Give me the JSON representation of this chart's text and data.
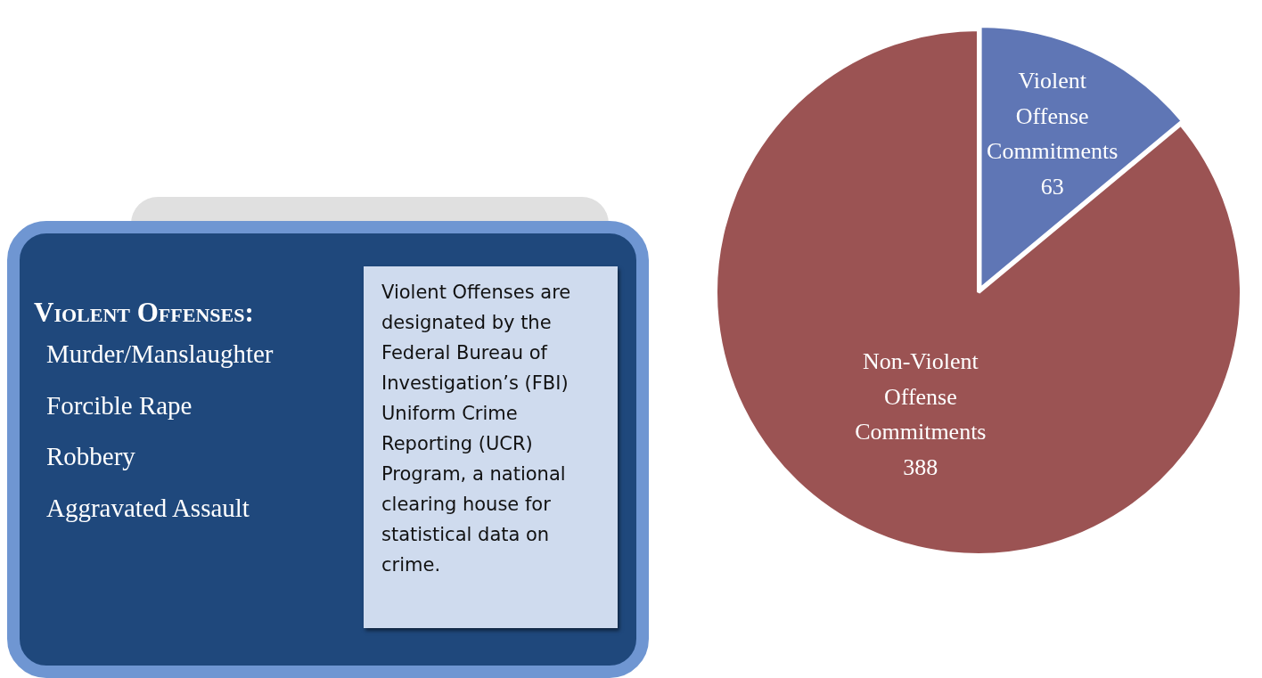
{
  "chart_data": [
    {
      "type": "other",
      "title": "Violent Offenses:",
      "annotations": [
        "Murder/Manslaughter",
        "Forcible Rape",
        "Robbery",
        "Aggravated Assault",
        "Violent Offenses are designated by the Federal Bureau of Investigation’s (FBI) Uniform Crime Reporting (UCR) Program, a national clearing house for statistical data on crime."
      ]
    },
    {
      "type": "pie",
      "categories": [
        "Violent Offense Commitments",
        "Non-Violent Offense Commitments"
      ],
      "values": [
        63,
        388
      ],
      "colors": [
        "#5f76b5",
        "#9b5353"
      ],
      "data_labels": true
    }
  ]
}
